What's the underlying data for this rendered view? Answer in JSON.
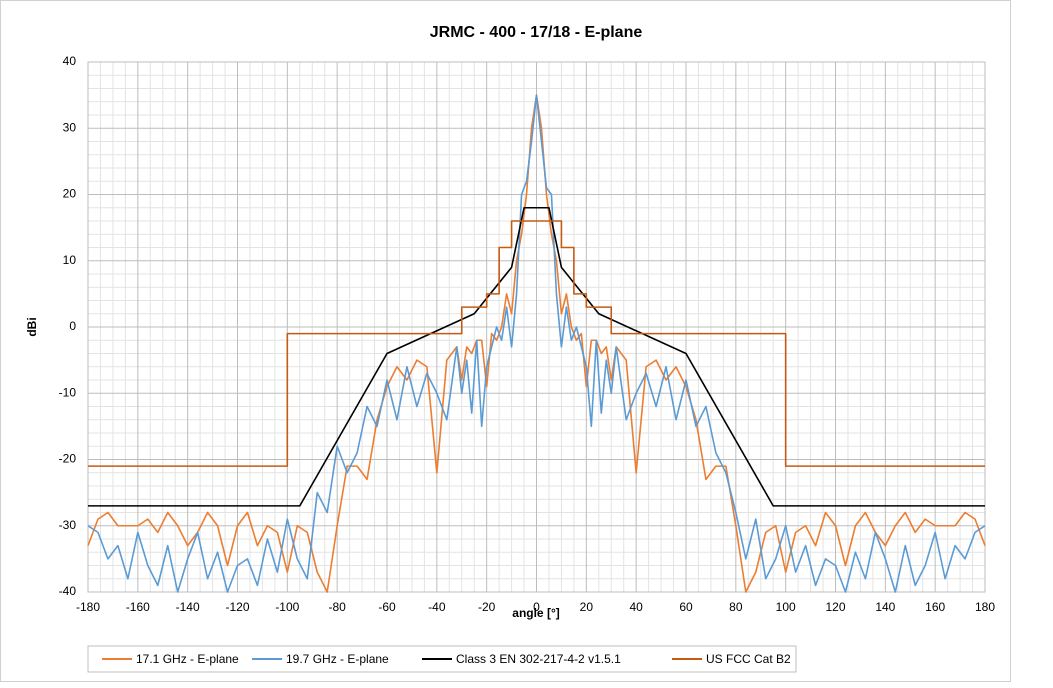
{
  "chart_data": {
    "type": "line",
    "title": "JRMC - 400 - 17/18 - E-plane",
    "x_label": "angle [°]",
    "y_label": "dBi",
    "xlim": [
      -180,
      180
    ],
    "ylim": [
      -40,
      40
    ],
    "xticks": [
      -180,
      -160,
      -140,
      -120,
      -100,
      -80,
      -60,
      -40,
      -20,
      0,
      20,
      40,
      60,
      80,
      100,
      120,
      140,
      160,
      180
    ],
    "yticks": [
      -40,
      -30,
      -20,
      -10,
      0,
      10,
      20,
      30,
      40
    ],
    "grid": true,
    "minor_grid": true,
    "legend": "bottom",
    "series": [
      {
        "name": "17.1 GHz - E-plane",
        "color": "#ed7d31",
        "x": [
          -180,
          -176,
          -172,
          -168,
          -164,
          -160,
          -156,
          -152,
          -148,
          -144,
          -140,
          -136,
          -132,
          -128,
          -124,
          -120,
          -116,
          -112,
          -108,
          -104,
          -100,
          -96,
          -92,
          -88,
          -84,
          -80,
          -76,
          -72,
          -68,
          -64,
          -60,
          -56,
          -52,
          -48,
          -44,
          -40,
          -36,
          -32,
          -30,
          -28,
          -26,
          -24,
          -22,
          -20,
          -18,
          -16,
          -14,
          -12,
          -10,
          -8,
          -6,
          -4,
          -2,
          0,
          2,
          4,
          6,
          8,
          10,
          12,
          14,
          16,
          18,
          20,
          22,
          24,
          26,
          28,
          30,
          32,
          36,
          40,
          44,
          48,
          52,
          56,
          60,
          64,
          68,
          72,
          76,
          80,
          84,
          88,
          92,
          96,
          100,
          104,
          108,
          112,
          116,
          120,
          124,
          128,
          132,
          136,
          140,
          144,
          148,
          152,
          156,
          160,
          164,
          168,
          172,
          176,
          180
        ],
        "values": [
          -33,
          -29,
          -28,
          -30,
          -30,
          -30,
          -29,
          -31,
          -28,
          -30,
          -33,
          -31,
          -28,
          -30,
          -36,
          -30,
          -28,
          -33,
          -30,
          -31,
          -37,
          -30,
          -31,
          -37,
          -40,
          -30,
          -21,
          -21,
          -23,
          -14,
          -9,
          -6,
          -8,
          -5,
          -6,
          -22,
          -5,
          -3,
          -8,
          -3,
          -4,
          -2,
          -2,
          -9,
          -1,
          -2,
          0,
          5,
          2,
          10,
          14,
          20,
          30,
          35,
          30,
          20,
          14,
          10,
          2,
          5,
          0,
          -2,
          -1,
          -9,
          -2,
          -2,
          -4,
          -3,
          -8,
          -3,
          -5,
          -22,
          -6,
          -5,
          -8,
          -6,
          -9,
          -14,
          -23,
          -21,
          -21,
          -30,
          -40,
          -37,
          -31,
          -30,
          -37,
          -31,
          -30,
          -33,
          -28,
          -30,
          -36,
          -30,
          -28,
          -31,
          -33,
          -30,
          -28,
          -31,
          -29,
          -30,
          -30,
          -30,
          -28,
          -29,
          -33
        ]
      },
      {
        "name": "19.7 GHz - E-plane",
        "color": "#5b9bd5",
        "x": [
          -180,
          -176,
          -172,
          -168,
          -164,
          -160,
          -156,
          -152,
          -148,
          -144,
          -140,
          -136,
          -132,
          -128,
          -124,
          -120,
          -116,
          -112,
          -108,
          -104,
          -100,
          -96,
          -92,
          -88,
          -84,
          -80,
          -76,
          -72,
          -68,
          -64,
          -60,
          -56,
          -52,
          -48,
          -44,
          -40,
          -36,
          -32,
          -30,
          -28,
          -26,
          -24,
          -22,
          -20,
          -18,
          -16,
          -14,
          -12,
          -10,
          -8,
          -6,
          -4,
          -2,
          0,
          2,
          4,
          6,
          8,
          10,
          12,
          14,
          16,
          18,
          20,
          22,
          24,
          26,
          28,
          30,
          32,
          36,
          40,
          44,
          48,
          52,
          56,
          60,
          64,
          68,
          72,
          76,
          80,
          84,
          88,
          92,
          96,
          100,
          104,
          108,
          112,
          116,
          120,
          124,
          128,
          132,
          136,
          140,
          144,
          148,
          152,
          156,
          160,
          164,
          168,
          172,
          176,
          180
        ],
        "values": [
          -30,
          -31,
          -35,
          -33,
          -38,
          -31,
          -36,
          -39,
          -33,
          -40,
          -35,
          -31,
          -38,
          -34,
          -40,
          -36,
          -35,
          -39,
          -32,
          -37,
          -29,
          -35,
          -38,
          -25,
          -28,
          -18,
          -22,
          -19,
          -12,
          -15,
          -8,
          -14,
          -6,
          -12,
          -7,
          -10,
          -14,
          -3,
          -10,
          -5,
          -13,
          -2,
          -15,
          -6,
          -3,
          0,
          -2,
          3,
          -3,
          5,
          20,
          22,
          28,
          35,
          28,
          21,
          20,
          5,
          -3,
          3,
          -2,
          0,
          -3,
          -6,
          -15,
          -2,
          -13,
          -5,
          -10,
          -3,
          -14,
          -10,
          -7,
          -12,
          -6,
          -14,
          -8,
          -15,
          -12,
          -19,
          -22,
          -28,
          -35,
          -29,
          -38,
          -35,
          -30,
          -37,
          -33,
          -39,
          -35,
          -36,
          -40,
          -34,
          -38,
          -31,
          -35,
          -40,
          -33,
          -39,
          -36,
          -31,
          -38,
          -33,
          -35,
          -31,
          -30
        ]
      },
      {
        "name": "Class 3 EN 302-217-4-2 v1.5.1",
        "color": "#000000",
        "x": [
          -180,
          -95,
          -60,
          -25,
          -10,
          -5,
          5,
          10,
          25,
          60,
          95,
          180
        ],
        "values": [
          -27,
          -27,
          -4,
          2,
          9,
          18,
          18,
          9,
          2,
          -4,
          -27,
          -27
        ]
      },
      {
        "name": "US FCC Cat B2",
        "color": "#c55a11",
        "x": [
          -180,
          -100,
          -100,
          -30,
          -30,
          -20,
          -20,
          -15,
          -15,
          -10,
          -10,
          10,
          10,
          15,
          15,
          20,
          20,
          30,
          30,
          100,
          100,
          180
        ],
        "values": [
          -21,
          -21,
          -1,
          -1,
          3,
          3,
          5,
          5,
          12,
          12,
          16,
          16,
          12,
          12,
          5,
          5,
          3,
          3,
          -1,
          -1,
          -21,
          -21
        ]
      }
    ]
  }
}
